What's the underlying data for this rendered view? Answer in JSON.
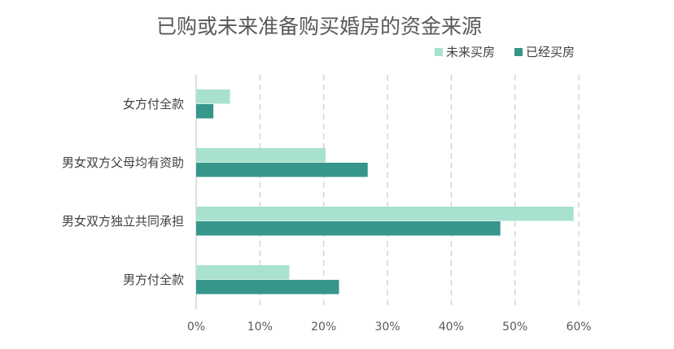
{
  "chart_data": {
    "type": "bar",
    "orientation": "horizontal",
    "title": "已购或未来准备购买婚房的资金来源",
    "categories": [
      "女方付全款",
      "男女双方父母均有资助",
      "男女双方独立共同承担",
      "男方付全款"
    ],
    "series": [
      {
        "name": "未来买房",
        "color": "#a8e2cf",
        "values": [
          5.3,
          20.3,
          59.2,
          14.6
        ]
      },
      {
        "name": "已经买房",
        "color": "#36968a",
        "values": [
          2.7,
          26.9,
          47.7,
          22.4
        ]
      }
    ],
    "xlim": [
      0,
      60
    ],
    "xticks": [
      "0%",
      "10%",
      "20%",
      "30%",
      "40%",
      "50%",
      "60%"
    ],
    "grid": "vertical-dashed",
    "legend": "top-right"
  }
}
